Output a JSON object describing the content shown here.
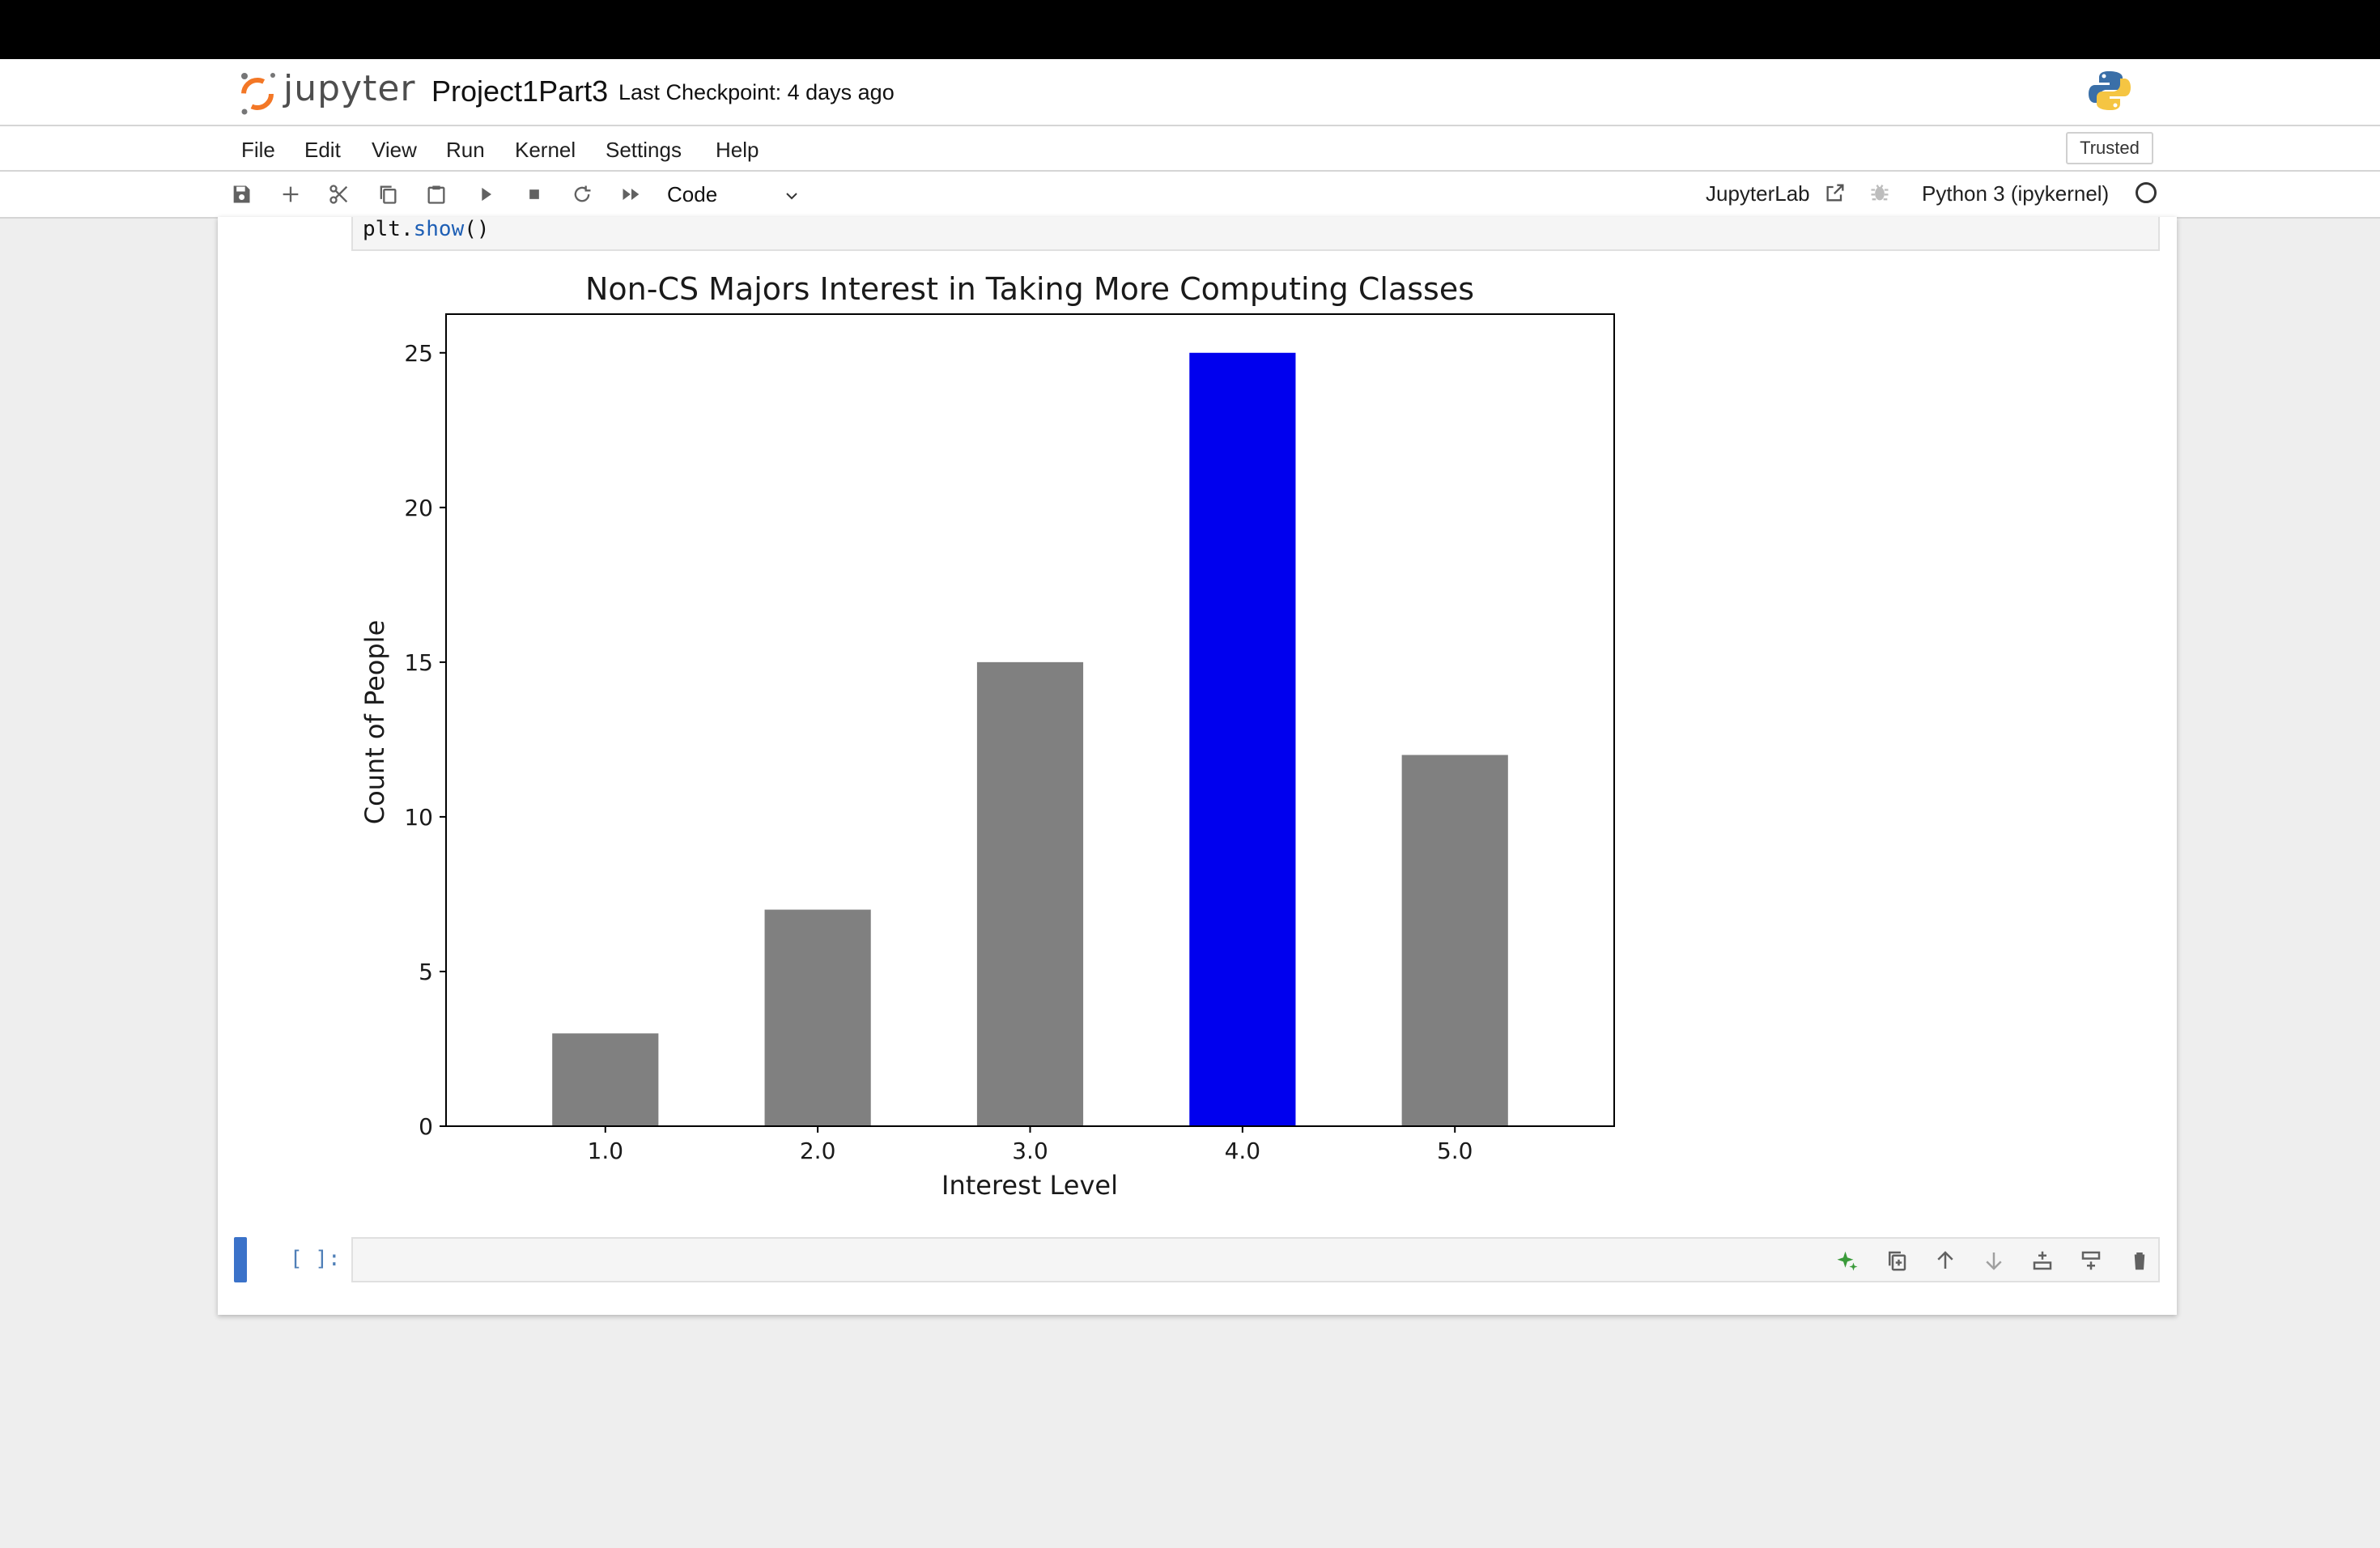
{
  "app": {
    "logo_text": "jupyter",
    "notebook_title": "Project1Part3",
    "checkpoint": "Last Checkpoint: 4 days ago"
  },
  "menu": {
    "items": [
      "File",
      "Edit",
      "View",
      "Run",
      "Kernel",
      "Settings",
      "Help"
    ],
    "trusted": "Trusted"
  },
  "toolbar": {
    "icons": [
      "save-icon",
      "plus-icon",
      "cut-icon",
      "copy-icon",
      "paste-icon",
      "run-icon",
      "stop-icon",
      "restart-icon",
      "fast-forward-icon"
    ],
    "cell_type": "Code",
    "jupyterlab_label": "JupyterLab",
    "kernel_name": "Python 3 (ipykernel)"
  },
  "cells": {
    "code_prefix": "plt.",
    "code_fn": "show",
    "code_suffix": "()",
    "empty_prompt": "[ ]:"
  },
  "cell_toolbar": {
    "icons": [
      "sparkle-icon",
      "duplicate-icon",
      "move-up-icon",
      "move-down-icon",
      "insert-above-icon",
      "insert-below-icon",
      "delete-icon"
    ]
  },
  "colors": {
    "highlight_bar": "#0000ee",
    "default_bar": "#808080",
    "sparkle": "#3a9a3a",
    "active_cell": "#3b72c9"
  },
  "chart_data": {
    "type": "bar",
    "title": "Non-CS Majors Interest in Taking More Computing Classes",
    "xlabel": "Interest Level",
    "ylabel": "Count of People",
    "categories": [
      "1.0",
      "2.0",
      "3.0",
      "4.0",
      "5.0"
    ],
    "values": [
      3,
      7,
      15,
      25,
      12
    ],
    "highlight_index": 3,
    "ylim": [
      0,
      26.25
    ],
    "yticks": [
      0,
      5,
      10,
      15,
      20,
      25
    ],
    "grid": false
  }
}
